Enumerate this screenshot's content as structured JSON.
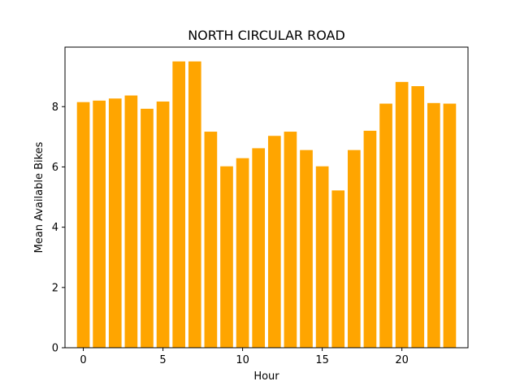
{
  "chart_data": {
    "type": "bar",
    "title": "NORTH CIRCULAR ROAD",
    "xlabel": "Hour",
    "ylabel": "Mean Available Bikes",
    "x": [
      0,
      1,
      2,
      3,
      4,
      5,
      6,
      7,
      8,
      9,
      10,
      11,
      12,
      13,
      14,
      15,
      16,
      17,
      18,
      19,
      20,
      21,
      22,
      23
    ],
    "values": [
      8.15,
      8.2,
      8.27,
      8.37,
      7.93,
      8.17,
      9.5,
      9.5,
      7.17,
      6.02,
      6.29,
      6.62,
      7.03,
      7.17,
      6.56,
      6.02,
      5.22,
      6.56,
      7.2,
      8.1,
      8.82,
      8.68,
      8.12,
      8.1
    ],
    "xlim": [
      -1.15,
      24.15
    ],
    "ylim": [
      0,
      9.975
    ],
    "xticks": [
      0,
      5,
      10,
      15,
      20
    ],
    "yticks": [
      0,
      2,
      4,
      6,
      8
    ],
    "bar_color": "#ffa500",
    "grid": false,
    "legend": "none"
  }
}
